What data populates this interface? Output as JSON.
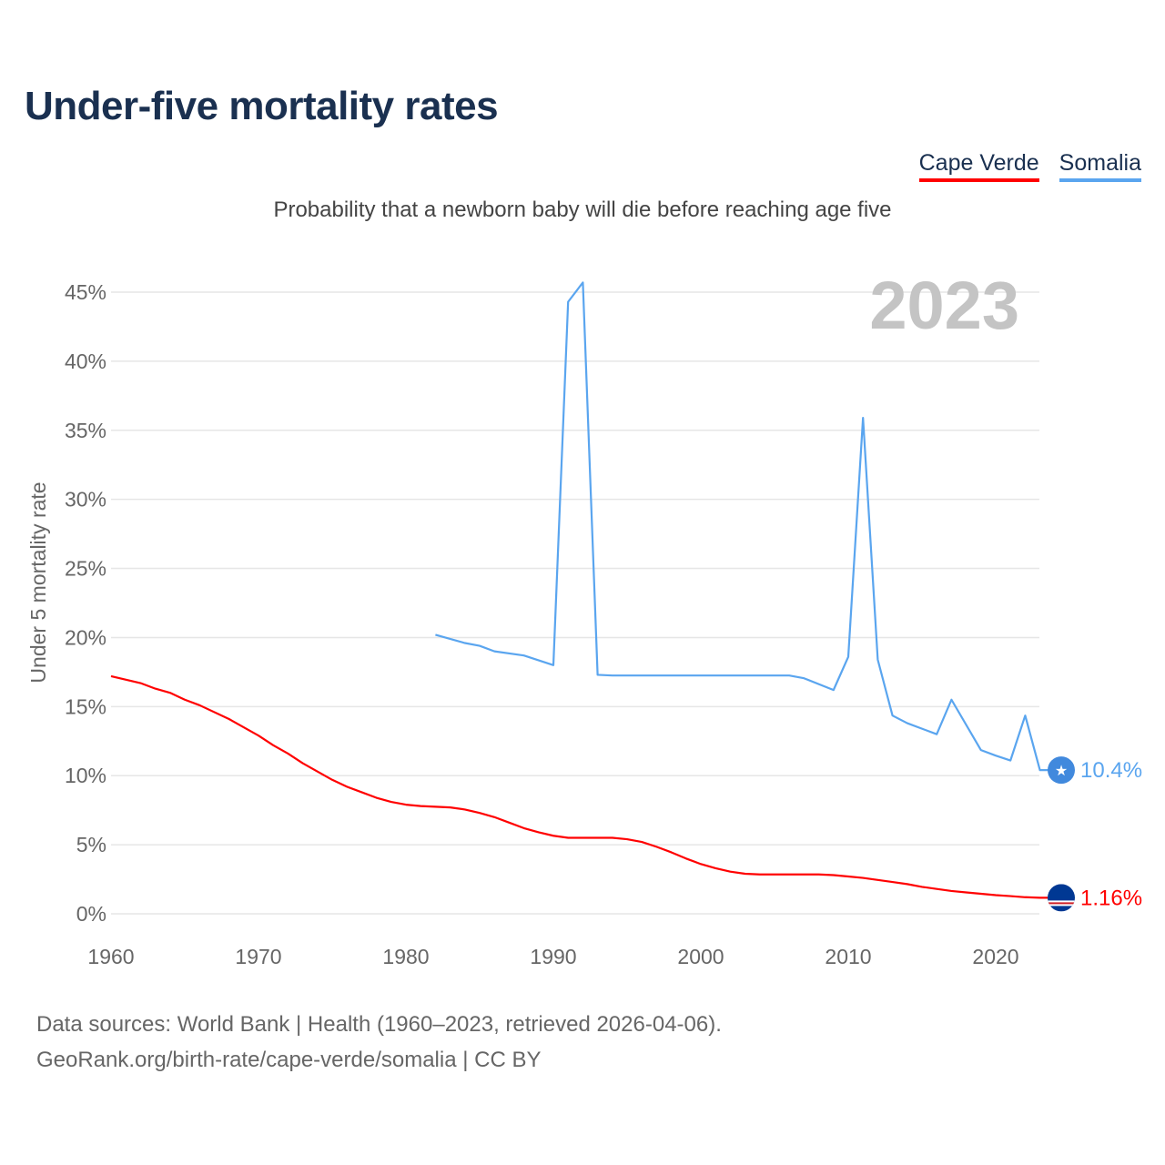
{
  "title": "Under-five mortality rates",
  "legend": [
    {
      "label": "Cape Verde",
      "color": "#ff0000"
    },
    {
      "label": "Somalia",
      "color": "#5aa5ef"
    }
  ],
  "subtitle": "Probability that a newborn baby will die before reaching age five",
  "year_watermark": "2023",
  "source_line1": "Data sources: World Bank | Health (1960–2023, retrieved 2026-04-06).",
  "source_line2": "GeoRank.org/birth-rate/cape-verde/somalia | CC BY",
  "chart_data": {
    "type": "line",
    "title": "Under-five mortality rates",
    "xlabel": "",
    "ylabel": "Under 5 mortality rate",
    "xlim": [
      1960,
      2023
    ],
    "ylim": [
      0,
      45
    ],
    "x_ticks": [
      "1960",
      "1970",
      "1980",
      "1990",
      "2000",
      "2010",
      "2020"
    ],
    "y_ticks": [
      "0%",
      "5%",
      "10%",
      "15%",
      "20%",
      "25%",
      "30%",
      "35%",
      "40%",
      "45%"
    ],
    "grid": true,
    "legend_position": "top-right",
    "series": [
      {
        "name": "Cape Verde",
        "color": "#ff0000",
        "end_label": "1.16%",
        "x": [
          1960,
          1962,
          1963,
          1964,
          1965,
          1966,
          1968,
          1970,
          1971,
          1972,
          1973,
          1974,
          1975,
          1976,
          1977,
          1978,
          1979,
          1980,
          1981,
          1982,
          1983,
          1984,
          1985,
          1986,
          1987,
          1988,
          1989,
          1990,
          1991,
          1992,
          1993,
          1994,
          1995,
          1996,
          1997,
          1998,
          1999,
          2000,
          2001,
          2002,
          2003,
          2004,
          2005,
          2006,
          2007,
          2008,
          2009,
          2010,
          2011,
          2012,
          2013,
          2014,
          2015,
          2016,
          2017,
          2018,
          2019,
          2020,
          2021,
          2022,
          2023
        ],
        "y": [
          17.2,
          16.7,
          16.3,
          16.0,
          15.5,
          15.1,
          14.1,
          12.9,
          12.2,
          11.6,
          10.9,
          10.3,
          9.7,
          9.2,
          8.8,
          8.4,
          8.1,
          7.9,
          7.8,
          7.75,
          7.7,
          7.55,
          7.3,
          7.0,
          6.6,
          6.2,
          5.9,
          5.65,
          5.5,
          5.5,
          5.5,
          5.5,
          5.4,
          5.2,
          4.85,
          4.45,
          4.0,
          3.6,
          3.3,
          3.05,
          2.9,
          2.85,
          2.85,
          2.85,
          2.85,
          2.85,
          2.8,
          2.7,
          2.6,
          2.45,
          2.3,
          2.15,
          1.95,
          1.8,
          1.65,
          1.55,
          1.45,
          1.35,
          1.28,
          1.2,
          1.16
        ]
      },
      {
        "name": "Somalia",
        "color": "#5aa5ef",
        "end_label": "10.4%",
        "x": [
          1982,
          1984,
          1985,
          1986,
          1988,
          1990,
          1991,
          1992,
          1993,
          1994,
          2000,
          2006,
          2007,
          2009,
          2010,
          2011,
          2012,
          2013,
          2014,
          2016,
          2017,
          2019,
          2020,
          2021,
          2022,
          2023
        ],
        "y": [
          20.2,
          19.6,
          19.4,
          19.0,
          18.7,
          18.0,
          44.3,
          45.7,
          17.3,
          17.25,
          17.25,
          17.25,
          17.05,
          16.2,
          18.6,
          35.9,
          18.4,
          14.35,
          13.8,
          13.0,
          15.5,
          11.85,
          11.45,
          11.1,
          14.35,
          10.4
        ]
      }
    ]
  }
}
